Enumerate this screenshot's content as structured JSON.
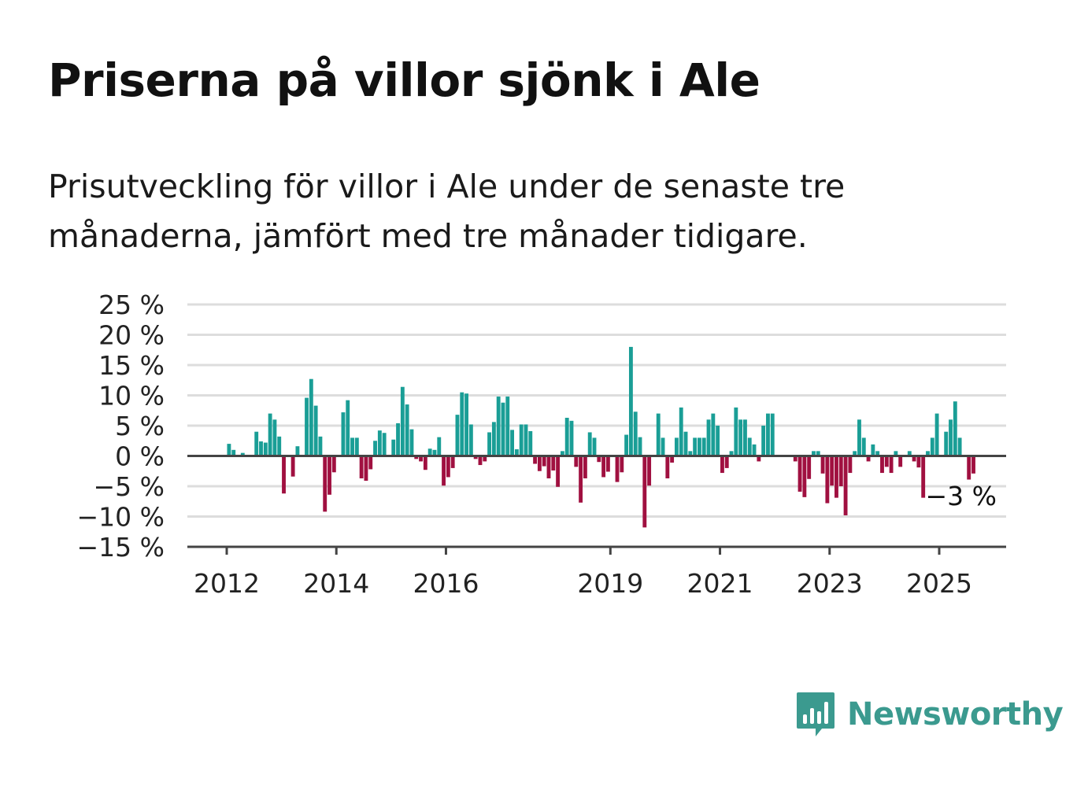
{
  "title": "Priserna på villor sjönk i Ale",
  "subtitle": "Prisutveckling för villor i Ale under de senaste tre månaderna, jämfört med tre månader tidigare.",
  "colors": {
    "positive": "#1a9e96",
    "negative": "#a01040",
    "grid": "#dddddd",
    "axis": "#444444",
    "brand": "#3b9a8f"
  },
  "brand": {
    "name": "Newsworthy",
    "icon": "newsworthy-chart-bubble-icon"
  },
  "chart_data": {
    "type": "bar",
    "title": "",
    "xlabel": "",
    "ylabel": "",
    "ylim": [
      -15,
      25
    ],
    "yticks": [
      25,
      20,
      15,
      10,
      5,
      0,
      -5,
      -10,
      -15
    ],
    "ytick_labels": [
      "25 %",
      "20 %",
      "15 %",
      "10 %",
      "5 %",
      "0 %",
      "−5 %",
      "−10 %",
      "−15 %"
    ],
    "xticks": [
      2012,
      2014,
      2016,
      2019,
      2021,
      2023,
      2025
    ],
    "xtick_labels": [
      "2012",
      "2014",
      "2016",
      "2019",
      "2021",
      "2023",
      "2025"
    ],
    "x_unit": "year, monthly bars",
    "start": "2011-09",
    "last_label": "−3 %",
    "values": [
      0,
      0,
      0,
      0,
      2,
      1,
      0,
      0.5,
      0,
      0,
      4,
      2.4,
      2.2,
      7,
      6,
      3.2,
      -6.2,
      0,
      -3.4,
      1.6,
      0,
      9.6,
      12.7,
      8.3,
      3.2,
      -9.2,
      -6.4,
      -2.7,
      0,
      7.2,
      9.2,
      3,
      3,
      -3.7,
      -4.1,
      -2.2,
      2.5,
      4.2,
      3.8,
      0,
      2.7,
      5.4,
      11.4,
      8.5,
      4.4,
      -0.5,
      -0.9,
      -2.3,
      1.2,
      1,
      3.1,
      -4.9,
      -3.5,
      -2,
      6.8,
      10.5,
      10.3,
      5.2,
      -0.5,
      -1.5,
      -0.9,
      3.9,
      5.6,
      9.8,
      8.8,
      9.8,
      4.3,
      1.1,
      5.2,
      5.2,
      4.1,
      -1.3,
      -2.5,
      -1.7,
      -3.7,
      -2.4,
      -5.1,
      0.8,
      6.3,
      5.8,
      -1.8,
      -7.7,
      -3.7,
      3.9,
      3,
      -1,
      -3.5,
      -2.6,
      0,
      -4.3,
      -2.7,
      3.5,
      18,
      7.3,
      3.1,
      -11.8,
      -4.9,
      0,
      7,
      3,
      -3.7,
      -1.1,
      3,
      8,
      4,
      0.8,
      3,
      3,
      3,
      6,
      7,
      5,
      -2.8,
      -2,
      0.8,
      8,
      6,
      6,
      3,
      1.9,
      -0.9,
      5,
      7,
      7,
      0,
      0,
      0,
      0,
      -0.9,
      -5.9,
      -6.8,
      -3.8,
      0.8,
      0.8,
      -2.9,
      -7.8,
      -4.9,
      -6.9,
      -5,
      -9.8,
      -2.8,
      0.8,
      6,
      3,
      -0.9,
      1.9,
      0.8,
      -2.8,
      -1.8,
      -2.8,
      0.8,
      -1.8,
      0,
      0.8,
      -0.9,
      -1.9,
      -6.9,
      0.8,
      3,
      7,
      0,
      4,
      6,
      9,
      3,
      0,
      -3.9,
      -2.9
    ]
  }
}
